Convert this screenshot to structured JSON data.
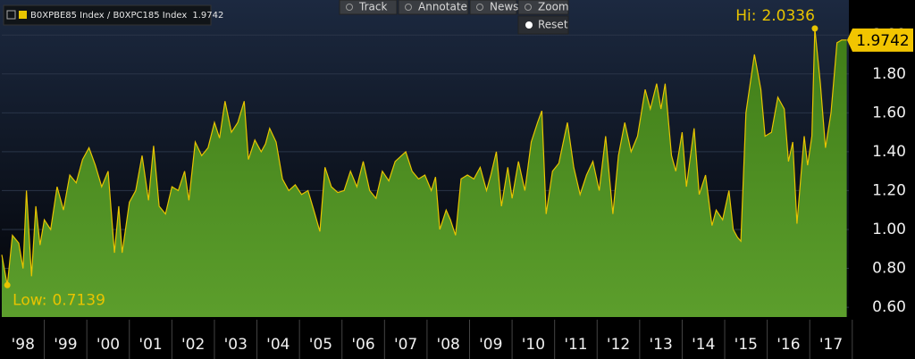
{
  "chart_data": {
    "type": "area",
    "series": [
      {
        "name": "B0XPBE85 Index / B0XPC185 Index",
        "color": "#e8c400",
        "fill": "#4a8a1e",
        "values": [
          0.87,
          0.7139,
          0.97,
          0.93,
          0.8,
          1.2,
          0.76,
          1.12,
          0.92,
          1.05,
          1.0,
          1.22,
          1.1,
          1.28,
          1.24,
          1.36,
          1.42,
          1.33,
          1.22,
          1.3,
          0.88,
          1.12,
          0.88,
          1.14,
          1.2,
          1.38,
          1.15,
          1.43,
          1.12,
          1.08,
          1.22,
          1.2,
          1.3,
          1.15,
          1.45,
          1.38,
          1.42,
          1.55,
          1.47,
          1.66,
          1.5,
          1.55,
          1.66,
          1.36,
          1.46,
          1.4,
          1.44,
          1.52,
          1.45,
          1.26,
          1.2,
          1.23,
          1.18,
          1.2,
          1.09,
          0.99,
          1.32,
          1.22,
          1.19,
          1.2,
          1.3,
          1.22,
          1.35,
          1.2,
          1.16,
          1.3,
          1.25,
          1.35,
          1.4,
          1.3,
          1.26,
          1.28,
          1.2,
          1.27,
          1.0,
          1.1,
          1.05,
          0.97,
          1.26,
          1.28,
          1.26,
          1.32,
          1.2,
          1.28,
          1.4,
          1.12,
          1.32,
          1.16,
          1.35,
          1.2,
          1.45,
          1.55,
          1.61,
          1.08,
          1.3,
          1.34,
          1.55,
          1.32,
          1.18,
          1.28,
          1.35,
          1.2,
          1.48,
          1.08,
          1.38,
          1.55,
          1.4,
          1.48,
          1.72,
          1.62,
          1.75,
          1.62,
          1.75,
          1.38,
          1.3,
          1.5,
          1.22,
          1.52,
          1.18,
          1.28,
          1.02,
          1.1,
          1.05,
          1.2,
          1.0,
          0.96,
          0.94,
          1.6,
          1.9,
          1.72,
          1.48,
          1.5,
          1.68,
          1.62,
          1.35,
          1.45,
          1.03,
          1.48,
          1.33,
          1.48,
          2.0336,
          1.75,
          1.42,
          1.6,
          1.96,
          1.9742,
          1.9742
        ]
      }
    ],
    "x": [
      1998.0,
      1998.13,
      1998.25,
      1998.4,
      1998.5,
      1998.58,
      1998.7,
      1998.8,
      1998.9,
      1999.0,
      1999.15,
      1999.3,
      1999.45,
      1999.6,
      1999.75,
      1999.9,
      2000.05,
      2000.2,
      2000.35,
      2000.5,
      2000.65,
      2000.75,
      2000.83,
      2001.0,
      2001.15,
      2001.3,
      2001.45,
      2001.57,
      2001.7,
      2001.85,
      2002.0,
      2002.15,
      2002.3,
      2002.4,
      2002.55,
      2002.7,
      2002.85,
      2003.0,
      2003.12,
      2003.25,
      2003.4,
      2003.55,
      2003.7,
      2003.8,
      2003.95,
      2004.1,
      2004.2,
      2004.3,
      2004.45,
      2004.6,
      2004.75,
      2004.9,
      2005.05,
      2005.2,
      2005.35,
      2005.48,
      2005.6,
      2005.75,
      2005.9,
      2006.05,
      2006.2,
      2006.35,
      2006.5,
      2006.65,
      2006.8,
      2006.95,
      2007.1,
      2007.25,
      2007.5,
      2007.65,
      2007.8,
      2007.95,
      2008.1,
      2008.2,
      2008.3,
      2008.45,
      2008.55,
      2008.67,
      2008.8,
      2008.95,
      2009.1,
      2009.25,
      2009.4,
      2009.5,
      2009.63,
      2009.75,
      2009.9,
      2010.0,
      2010.15,
      2010.3,
      2010.45,
      2010.6,
      2010.7,
      2010.8,
      2010.95,
      2011.1,
      2011.3,
      2011.45,
      2011.6,
      2011.75,
      2011.9,
      2012.05,
      2012.2,
      2012.37,
      2012.5,
      2012.65,
      2012.8,
      2012.95,
      2013.13,
      2013.25,
      2013.4,
      2013.5,
      2013.6,
      2013.75,
      2013.85,
      2014.0,
      2014.1,
      2014.28,
      2014.4,
      2014.55,
      2014.7,
      2014.8,
      2014.95,
      2015.1,
      2015.2,
      2015.3,
      2015.38,
      2015.5,
      2015.7,
      2015.85,
      2015.95,
      2016.1,
      2016.25,
      2016.4,
      2016.5,
      2016.6,
      2016.7,
      2016.87,
      2016.95,
      2017.05,
      2017.12,
      2017.25,
      2017.37,
      2017.5,
      2017.64,
      2017.75,
      2017.87
    ],
    "xlim": [
      1998,
      2017.92
    ],
    "xticks": [
      {
        "value": 1998.5,
        "label": "'98"
      },
      {
        "value": 1999.5,
        "label": "'99"
      },
      {
        "value": 2000.5,
        "label": "'00"
      },
      {
        "value": 2001.5,
        "label": "'01"
      },
      {
        "value": 2002.5,
        "label": "'02"
      },
      {
        "value": 2003.5,
        "label": "'03"
      },
      {
        "value": 2004.5,
        "label": "'04"
      },
      {
        "value": 2005.5,
        "label": "'05"
      },
      {
        "value": 2006.5,
        "label": "'06"
      },
      {
        "value": 2007.5,
        "label": "'07"
      },
      {
        "value": 2008.5,
        "label": "'08"
      },
      {
        "value": 2009.5,
        "label": "'09"
      },
      {
        "value": 2010.5,
        "label": "'10"
      },
      {
        "value": 2011.5,
        "label": "'11"
      },
      {
        "value": 2012.5,
        "label": "'12"
      },
      {
        "value": 2013.5,
        "label": "'13"
      },
      {
        "value": 2014.5,
        "label": "'14"
      },
      {
        "value": 2015.5,
        "label": "'15"
      },
      {
        "value": 2016.5,
        "label": "'16"
      },
      {
        "value": 2017.5,
        "label": "'17"
      }
    ],
    "ylim": [
      0.55,
      2.18
    ],
    "yticks": [
      {
        "value": 0.6,
        "label": "0.60"
      },
      {
        "value": 0.8,
        "label": "0.80"
      },
      {
        "value": 1.0,
        "label": "1.00"
      },
      {
        "value": 1.2,
        "label": "1.20"
      },
      {
        "value": 1.4,
        "label": "1.40"
      },
      {
        "value": 1.6,
        "label": "1.60"
      },
      {
        "value": 1.8,
        "label": "1.80"
      },
      {
        "value": 2.0,
        "label": "2.00"
      }
    ],
    "grid": true,
    "last_value": 1.9742,
    "annotations": [
      {
        "label": "Hi:",
        "value": 2.0336
      },
      {
        "label": "Low:",
        "value": 0.7139
      }
    ]
  },
  "toolbar": [
    "Track",
    "Annotate",
    "News",
    "Zoom",
    "Reset"
  ]
}
